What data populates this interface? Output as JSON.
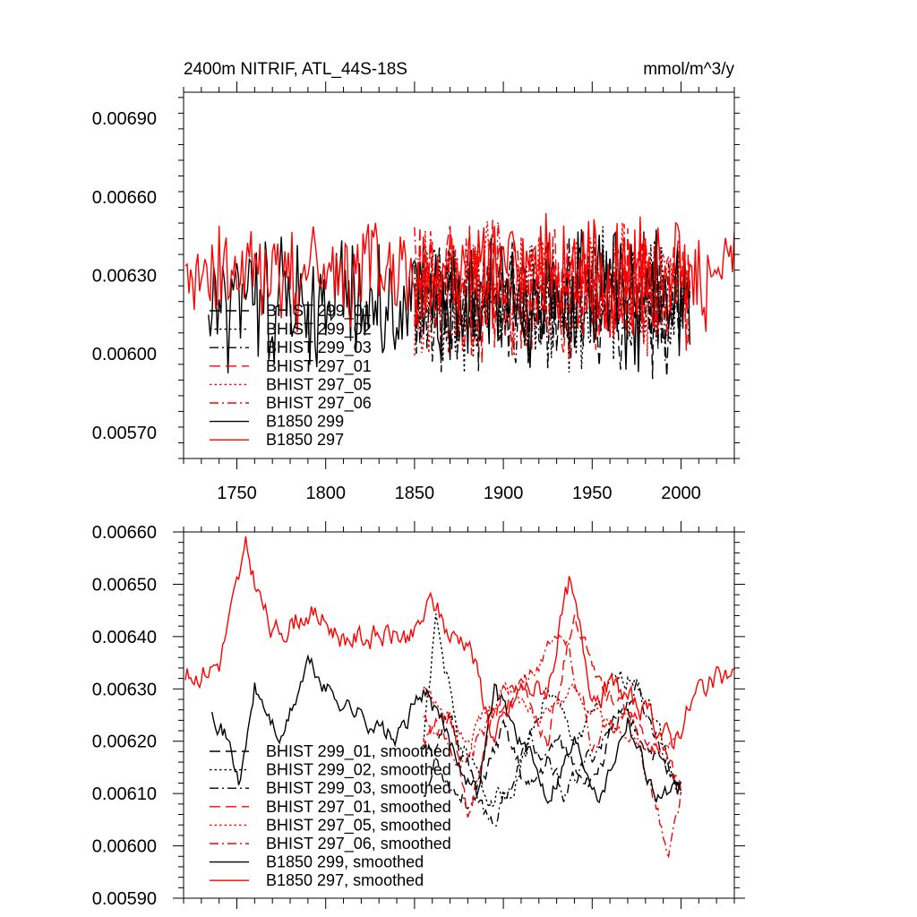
{
  "colors": {
    "black": "#000000",
    "red": "#ff0000"
  },
  "chart_data": [
    {
      "type": "line",
      "title_left": "2400m NITRIF, ATL_44S-18S",
      "title_right": "mmol/m^3/y",
      "xlabel": "",
      "ylabel": "",
      "xlim": [
        1720,
        2030
      ],
      "ylim": [
        0.0056,
        0.007
      ],
      "x_ticks": [
        1750,
        1800,
        1850,
        1900,
        1950,
        2000
      ],
      "x_tick_labels": [
        "1750",
        "1800",
        "1850",
        "1900",
        "1950",
        "2000"
      ],
      "y_ticks": [
        0.0057,
        0.006,
        0.0063,
        0.0066,
        0.0069
      ],
      "y_tick_labels": [
        "0.00570",
        "0.00600",
        "0.00630",
        "0.00660",
        "0.00690"
      ],
      "legend_position": "lower-left",
      "series": [
        {
          "name": "BHIST 299_01",
          "color": "#000000",
          "dash": "long-dash",
          "x_start": 1850,
          "x_end": 2005,
          "mean": 0.0062,
          "amp": 0.0003,
          "seed": 11
        },
        {
          "name": "BHIST 299_02",
          "color": "#000000",
          "dash": "dotted",
          "x_start": 1850,
          "x_end": 2005,
          "mean": 0.0062,
          "amp": 0.0003,
          "seed": 12
        },
        {
          "name": "BHIST 299_03",
          "color": "#000000",
          "dash": "dash-dot",
          "x_start": 1850,
          "x_end": 2005,
          "mean": 0.0062,
          "amp": 0.0003,
          "seed": 13
        },
        {
          "name": "BHIST 297_01",
          "color": "#ff0000",
          "dash": "long-dash",
          "x_start": 1850,
          "x_end": 2005,
          "mean": 0.00625,
          "amp": 0.0003,
          "seed": 21
        },
        {
          "name": "BHIST 297_05",
          "color": "#ff0000",
          "dash": "dotted",
          "x_start": 1850,
          "x_end": 2005,
          "mean": 0.00625,
          "amp": 0.0003,
          "seed": 22
        },
        {
          "name": "BHIST 297_06",
          "color": "#ff0000",
          "dash": "dash-dot",
          "x_start": 1850,
          "x_end": 2005,
          "mean": 0.00625,
          "amp": 0.0003,
          "seed": 23
        },
        {
          "name": "B1850 299",
          "color": "#000000",
          "dash": "solid",
          "x_start": 1734,
          "x_end": 2005,
          "mean": 0.0062,
          "amp": 0.0003,
          "seed": 31
        },
        {
          "name": "B1850 297",
          "color": "#ff0000",
          "dash": "solid",
          "x_start": 1721,
          "x_end": 2030,
          "mean": 0.0063,
          "amp": 0.00025,
          "seed": 41
        }
      ]
    },
    {
      "type": "line",
      "title_left": "",
      "title_right": "",
      "xlabel": "",
      "ylabel": "",
      "xlim": [
        1720,
        2030
      ],
      "ylim": [
        0.0059,
        0.0066
      ],
      "x_ticks": [
        1750,
        1800,
        1850,
        1900,
        1950,
        2000
      ],
      "x_tick_labels": [],
      "y_ticks": [
        0.0059,
        0.006,
        0.0061,
        0.0062,
        0.0063,
        0.0064,
        0.0065,
        0.0066
      ],
      "y_tick_labels": [
        "0.00590",
        "0.00600",
        "0.00610",
        "0.00620",
        "0.00630",
        "0.00640",
        "0.00650",
        "0.00660"
      ],
      "legend_position": "lower-left",
      "series": [
        {
          "name": "BHIST 299_01, smoothed",
          "color": "#000000",
          "dash": "long-dash",
          "x_start": 1855,
          "x_end": 2000,
          "anchors": [
            [
              1855,
              0.0061
            ],
            [
              1870,
              0.00625
            ],
            [
              1885,
              0.0061
            ],
            [
              1900,
              0.00622
            ],
            [
              1915,
              0.0061
            ],
            [
              1930,
              0.0062
            ],
            [
              1950,
              0.00612
            ],
            [
              1965,
              0.00625
            ],
            [
              1980,
              0.0062
            ],
            [
              2000,
              0.0061
            ]
          ],
          "amp": 4e-05,
          "seed": 51
        },
        {
          "name": "BHIST 299_02, smoothed",
          "color": "#000000",
          "dash": "dotted",
          "x_start": 1855,
          "x_end": 2000,
          "anchors": [
            [
              1855,
              0.0062
            ],
            [
              1862,
              0.00643
            ],
            [
              1875,
              0.0062
            ],
            [
              1890,
              0.0061
            ],
            [
              1905,
              0.0061
            ],
            [
              1925,
              0.0063
            ],
            [
              1940,
              0.0062
            ],
            [
              1960,
              0.0063
            ],
            [
              1975,
              0.00633
            ],
            [
              1990,
              0.0062
            ],
            [
              2000,
              0.0061
            ]
          ],
          "amp": 4e-05,
          "seed": 52
        },
        {
          "name": "BHIST 299_03, smoothed",
          "color": "#000000",
          "dash": "dash-dot",
          "x_start": 1855,
          "x_end": 2000,
          "anchors": [
            [
              1855,
              0.0062
            ],
            [
              1875,
              0.0061
            ],
            [
              1895,
              0.00605
            ],
            [
              1915,
              0.0062
            ],
            [
              1935,
              0.0061
            ],
            [
              1955,
              0.0062
            ],
            [
              1975,
              0.0063
            ],
            [
              2000,
              0.0061
            ]
          ],
          "amp": 4e-05,
          "seed": 53
        },
        {
          "name": "BHIST 297_01, smoothed",
          "color": "#ff0000",
          "dash": "long-dash",
          "x_start": 1855,
          "x_end": 2000,
          "anchors": [
            [
              1855,
              0.0062
            ],
            [
              1870,
              0.00625
            ],
            [
              1880,
              0.00605
            ],
            [
              1895,
              0.00625
            ],
            [
              1910,
              0.0063
            ],
            [
              1925,
              0.0062
            ],
            [
              1940,
              0.00645
            ],
            [
              1955,
              0.0063
            ],
            [
              1970,
              0.00625
            ],
            [
              1985,
              0.0062
            ],
            [
              2000,
              0.0061
            ]
          ],
          "amp": 4e-05,
          "seed": 61
        },
        {
          "name": "BHIST 297_05, smoothed",
          "color": "#ff0000",
          "dash": "dotted",
          "x_start": 1855,
          "x_end": 2000,
          "anchors": [
            [
              1855,
              0.0063
            ],
            [
              1880,
              0.0062
            ],
            [
              1900,
              0.0063
            ],
            [
              1920,
              0.00625
            ],
            [
              1940,
              0.0063
            ],
            [
              1960,
              0.00622
            ],
            [
              1980,
              0.0062
            ],
            [
              2000,
              0.0062
            ]
          ],
          "amp": 3e-05,
          "seed": 62
        },
        {
          "name": "BHIST 297_06, smoothed",
          "color": "#ff0000",
          "dash": "dash-dot",
          "x_start": 1855,
          "x_end": 2000,
          "anchors": [
            [
              1855,
              0.00625
            ],
            [
              1880,
              0.00615
            ],
            [
              1900,
              0.0063
            ],
            [
              1920,
              0.00635
            ],
            [
              1935,
              0.0064
            ],
            [
              1950,
              0.0062
            ],
            [
              1970,
              0.00625
            ],
            [
              1985,
              0.0061
            ],
            [
              1993,
              0.00597
            ],
            [
              2000,
              0.0061
            ]
          ],
          "amp": 4e-05,
          "seed": 63
        },
        {
          "name": "B1850 299, smoothed",
          "color": "#000000",
          "dash": "solid",
          "x_start": 1736,
          "x_end": 2000,
          "anchors": [
            [
              1736,
              0.00627
            ],
            [
              1745,
              0.0062
            ],
            [
              1752,
              0.00612
            ],
            [
              1760,
              0.0063
            ],
            [
              1775,
              0.0062
            ],
            [
              1790,
              0.00635
            ],
            [
              1800,
              0.0063
            ],
            [
              1820,
              0.00625
            ],
            [
              1840,
              0.0062
            ],
            [
              1855,
              0.0063
            ],
            [
              1870,
              0.0062
            ],
            [
              1885,
              0.0061
            ],
            [
              1895,
              0.0063
            ],
            [
              1910,
              0.0062
            ],
            [
              1925,
              0.0061
            ],
            [
              1940,
              0.0062
            ],
            [
              1955,
              0.0061
            ],
            [
              1970,
              0.00625
            ],
            [
              1985,
              0.0061
            ],
            [
              2000,
              0.0061
            ]
          ],
          "amp": 4e-05,
          "seed": 71
        },
        {
          "name": "B1850 297, smoothed",
          "color": "#ff0000",
          "dash": "solid",
          "x_start": 1721,
          "x_end": 2030,
          "anchors": [
            [
              1721,
              0.00632
            ],
            [
              1740,
              0.00635
            ],
            [
              1755,
              0.00656
            ],
            [
              1770,
              0.0064
            ],
            [
              1790,
              0.00645
            ],
            [
              1810,
              0.0064
            ],
            [
              1830,
              0.0064
            ],
            [
              1850,
              0.0064
            ],
            [
              1860,
              0.00647
            ],
            [
              1870,
              0.0064
            ],
            [
              1880,
              0.0064
            ],
            [
              1895,
              0.0062
            ],
            [
              1910,
              0.0063
            ],
            [
              1925,
              0.0063
            ],
            [
              1937,
              0.0065
            ],
            [
              1950,
              0.0063
            ],
            [
              1965,
              0.0063
            ],
            [
              1980,
              0.00625
            ],
            [
              1995,
              0.0062
            ],
            [
              2010,
              0.0063
            ],
            [
              2030,
              0.00633
            ]
          ],
          "amp": 5e-05,
          "seed": 81
        }
      ]
    }
  ]
}
